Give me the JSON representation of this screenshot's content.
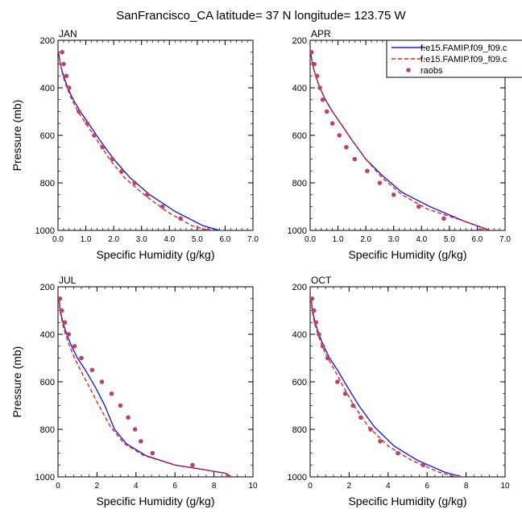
{
  "figure": {
    "title": "SanFrancisco_CA  latitude= 37 N longitude= 123.75 W",
    "colors": {
      "model1": "#1f1fd6",
      "model2": "#e8231f",
      "obs": "#b5466a"
    }
  },
  "legend": {
    "placement": "top-right of APR panel",
    "entries": [
      {
        "label": "f.e15.FAMIP.f09_f09.c",
        "style": "solid-line",
        "color": "#1f1fd6"
      },
      {
        "label": "f.e15.FAMIP.f09_f09.c",
        "style": "dashed-line",
        "color": "#e8231f"
      },
      {
        "label": "raobs",
        "style": "dot",
        "color": "#b5466a"
      }
    ]
  },
  "chart_data": [
    {
      "type": "line",
      "title": "JAN",
      "xlabel": "Specific Humidity (g/kg)",
      "ylabel": "Pressure (mb)",
      "xlim": [
        0,
        7
      ],
      "ylim": [
        1000,
        200
      ],
      "y_inverted": true,
      "xticks": [
        "0.0",
        "1.0",
        "2.0",
        "3.0",
        "4.0",
        "5.0",
        "6.0",
        "7.0"
      ],
      "yticks": [
        "200",
        "400",
        "600",
        "800",
        "1000"
      ],
      "series": [
        {
          "name": "f.e15.FAMIP.f09_f09.c",
          "style": "solid",
          "x": [
            0.02,
            0.08,
            0.2,
            0.35,
            0.55,
            0.8,
            1.1,
            1.5,
            2.0,
            2.6,
            3.3,
            4.2,
            5.2,
            6.1
          ],
          "y": [
            250,
            300,
            350,
            400,
            450,
            500,
            550,
            620,
            700,
            780,
            850,
            920,
            980,
            1010
          ]
        },
        {
          "name": "f.e15.FAMIP.f09_f09.c",
          "style": "dashed",
          "x": [
            0.02,
            0.08,
            0.18,
            0.32,
            0.5,
            0.72,
            1.0,
            1.4,
            1.85,
            2.4,
            3.1,
            3.9,
            4.8,
            5.7
          ],
          "y": [
            250,
            300,
            350,
            400,
            450,
            500,
            550,
            620,
            700,
            780,
            850,
            920,
            980,
            1010
          ]
        },
        {
          "name": "raobs",
          "style": "dots",
          "x": [
            0.15,
            0.2,
            0.3,
            0.4,
            0.75,
            1.05,
            1.3,
            1.6,
            1.95,
            2.3,
            2.75,
            3.2,
            3.75,
            4.4,
            5.4
          ],
          "y": [
            250,
            300,
            350,
            400,
            500,
            550,
            600,
            650,
            700,
            750,
            800,
            850,
            900,
            950,
            1000
          ]
        }
      ]
    },
    {
      "type": "line",
      "title": "APR",
      "xlabel": "Specific Humidity (g/kg)",
      "ylabel": "Pressure (mb)",
      "xlim": [
        0,
        7
      ],
      "ylim": [
        1000,
        200
      ],
      "y_inverted": true,
      "xticks": [
        "0.0",
        "1.0",
        "2.0",
        "3.0",
        "4.0",
        "5.0",
        "6.0",
        "7.0"
      ],
      "yticks": [
        "200",
        "400",
        "600",
        "800",
        "1000"
      ],
      "series": [
        {
          "name": "f.e15.FAMIP.f09_f09.c",
          "style": "solid",
          "x": [
            0.02,
            0.08,
            0.2,
            0.35,
            0.55,
            0.8,
            1.1,
            1.5,
            2.0,
            2.6,
            3.3,
            4.3,
            5.5,
            6.7
          ],
          "y": [
            250,
            300,
            350,
            400,
            450,
            500,
            550,
            620,
            700,
            770,
            840,
            900,
            960,
            1010
          ]
        },
        {
          "name": "f.e15.FAMIP.f09_f09.c",
          "style": "dashed",
          "x": [
            0.02,
            0.08,
            0.2,
            0.35,
            0.55,
            0.8,
            1.1,
            1.5,
            2.0,
            2.6,
            3.3,
            4.2,
            5.5,
            6.7
          ],
          "y": [
            250,
            300,
            350,
            400,
            450,
            500,
            550,
            620,
            700,
            780,
            850,
            910,
            960,
            1010
          ]
        },
        {
          "name": "raobs",
          "style": "dots",
          "x": [
            0.05,
            0.15,
            0.25,
            0.35,
            0.45,
            0.6,
            0.8,
            1.05,
            1.3,
            1.6,
            2.05,
            2.5,
            3.0,
            3.9,
            4.8,
            6.1
          ],
          "y": [
            250,
            300,
            350,
            400,
            450,
            500,
            550,
            600,
            650,
            700,
            750,
            800,
            850,
            900,
            950,
            1000
          ]
        }
      ]
    },
    {
      "type": "line",
      "title": "JUL",
      "xlabel": "Specific Humidity (g/kg)",
      "ylabel": "Pressure (mb)",
      "xlim": [
        0,
        10
      ],
      "ylim": [
        1000,
        200
      ],
      "y_inverted": true,
      "xticks": [
        "0",
        "2",
        "4",
        "6",
        "8",
        "10"
      ],
      "yticks": [
        "200",
        "400",
        "600",
        "800",
        "1000"
      ],
      "series": [
        {
          "name": "f.e15.FAMIP.f09_f09.c",
          "style": "solid",
          "x": [
            0.05,
            0.12,
            0.25,
            0.45,
            0.7,
            1.0,
            1.4,
            1.9,
            2.4,
            2.9,
            3.5,
            4.5,
            6.0,
            7.5,
            8.6,
            9.1
          ],
          "y": [
            250,
            300,
            350,
            400,
            450,
            500,
            550,
            620,
            700,
            800,
            860,
            910,
            950,
            970,
            985,
            1010
          ]
        },
        {
          "name": "f.e15.FAMIP.f09_f09.c",
          "style": "dashed",
          "x": [
            0.05,
            0.1,
            0.22,
            0.38,
            0.6,
            0.85,
            1.15,
            1.6,
            2.1,
            2.7,
            3.4,
            4.4,
            6.0,
            7.5,
            8.6,
            9.1
          ],
          "y": [
            250,
            300,
            350,
            400,
            450,
            500,
            550,
            620,
            700,
            790,
            860,
            910,
            950,
            970,
            985,
            1010
          ]
        },
        {
          "name": "raobs",
          "style": "dots",
          "x": [
            0.1,
            0.2,
            0.35,
            0.55,
            0.85,
            1.2,
            1.75,
            2.25,
            2.75,
            3.2,
            3.6,
            3.95,
            4.25,
            4.85,
            6.9,
            8.7
          ],
          "y": [
            250,
            300,
            350,
            400,
            450,
            500,
            550,
            600,
            650,
            700,
            750,
            800,
            850,
            900,
            950,
            1000
          ]
        }
      ]
    },
    {
      "type": "line",
      "title": "OCT",
      "xlabel": "Specific Humidity (g/kg)",
      "ylabel": "Pressure (mb)",
      "xlim": [
        0,
        10
      ],
      "ylim": [
        1000,
        200
      ],
      "y_inverted": true,
      "xticks": [
        "0",
        "2",
        "4",
        "6",
        "8",
        "10"
      ],
      "yticks": [
        "200",
        "400",
        "600",
        "800",
        "1000"
      ],
      "series": [
        {
          "name": "f.e15.FAMIP.f09_f09.c",
          "style": "solid",
          "x": [
            0.05,
            0.12,
            0.25,
            0.45,
            0.7,
            1.0,
            1.4,
            1.9,
            2.5,
            3.3,
            4.3,
            5.5,
            6.9,
            8.2
          ],
          "y": [
            250,
            300,
            350,
            400,
            450,
            500,
            550,
            620,
            700,
            790,
            870,
            930,
            980,
            1010
          ]
        },
        {
          "name": "f.e15.FAMIP.f09_f09.c",
          "style": "dashed",
          "x": [
            0.05,
            0.1,
            0.22,
            0.4,
            0.62,
            0.9,
            1.25,
            1.7,
            2.25,
            3.0,
            4.0,
            5.2,
            6.6,
            7.9
          ],
          "y": [
            250,
            300,
            350,
            400,
            450,
            500,
            550,
            620,
            700,
            790,
            870,
            930,
            980,
            1010
          ]
        },
        {
          "name": "raobs",
          "style": "dots",
          "x": [
            0.1,
            0.2,
            0.3,
            0.45,
            0.65,
            0.9,
            1.4,
            1.8,
            2.2,
            2.6,
            3.1,
            3.6,
            4.5,
            5.8,
            7.6
          ],
          "y": [
            250,
            300,
            350,
            400,
            450,
            500,
            600,
            650,
            700,
            750,
            800,
            850,
            900,
            950,
            1000
          ]
        }
      ]
    }
  ]
}
